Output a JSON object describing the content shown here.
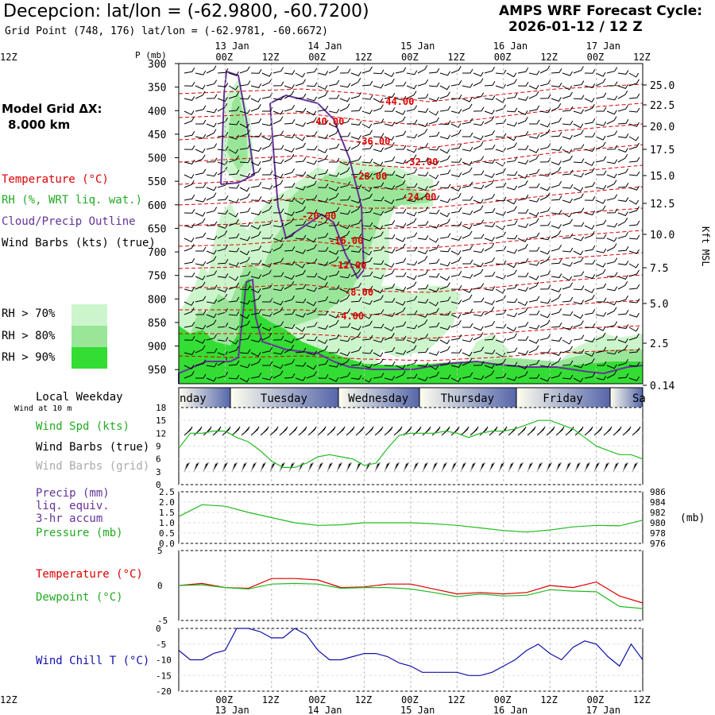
{
  "header": {
    "title": "Decepcion:  lat/lon = (-62.9800, -60.7200)",
    "subtitle": "Grid Point (748, 176) lat/lon = (-62.9781, -60.6672)",
    "forecast_label": "AMPS WRF Forecast Cycle:",
    "forecast_cycle": "2026-01-12 / 12  Z"
  },
  "left_panel": {
    "model_grid_label": "Model Grid ΔX:",
    "model_grid_value": "8.000 km",
    "legend_temperature": "Temperature (°C)",
    "legend_rh": "RH (%, WRT liq. wat.)",
    "legend_cloud": "Cloud/Precip Outline",
    "legend_wind": "Wind Barbs (kts) (true)",
    "rh_levels": [
      {
        "label": "RH > 70%",
        "color": "#ccf5cc"
      },
      {
        "label": "RH > 80%",
        "color": "#99e699"
      },
      {
        "label": "RH > 90%",
        "color": "#33dd33"
      }
    ],
    "weekday_label": "Local Weekday",
    "wind10_label": "Wind at 10 m",
    "wind_spd_label": "Wind Spd (kts)",
    "wind_barbs_true_label": "Wind Barbs (true)",
    "wind_barbs_grid_label": "Wind Barbs (grid)",
    "precip_label": "Precip (mm)",
    "precip_sub1": "liq. equiv.",
    "precip_sub2": "3-hr accum",
    "pressure_label": "Pressure (mb)",
    "temp_label": "Temperature (°C)",
    "dew_label": "Dewpoint (°C)",
    "windchill_label": "Wind Chill T (°C)"
  },
  "time_axis": {
    "top_dates": [
      "13 Jan",
      "14 Jan",
      "15 Jan",
      "16 Jan",
      "17 Jan"
    ],
    "ticks": [
      "00Z",
      "12Z",
      "00Z",
      "12Z",
      "00Z",
      "12Z",
      "00Z",
      "12Z",
      "00Z",
      "12Z"
    ],
    "bottom_dates": [
      "13 Jan",
      "14 Jan",
      "15 Jan",
      "16 Jan",
      "17 Jan"
    ],
    "weekdays": [
      "nday",
      "Tuesday",
      "Wednesday",
      "Thursday",
      "Friday",
      "Sa"
    ]
  },
  "chart_data": [
    {
      "type": "heatmap",
      "name": "Vertical cross-section (time vs pressure)",
      "y_axis_label": "P (mb)",
      "pressure_ticks": [
        "300",
        "350",
        "400",
        "450",
        "500",
        "550",
        "600",
        "650",
        "700",
        "750",
        "800",
        "850",
        "900",
        "950"
      ],
      "right_axis_label": "Kft MSL",
      "kft_ticks": [
        "25.0",
        "22.5",
        "20.0",
        "17.5",
        "15.0",
        "12.5",
        "10.0",
        "7.5",
        "5.0",
        "2.5",
        "0.14"
      ],
      "temperature_contour_labels": [
        "-44.00",
        "-40.00",
        "-36.00",
        "-32.00",
        "-28.00",
        "-24.00",
        "-20.00",
        "-16.00",
        "-12.00",
        "-8.00",
        "-4.00"
      ],
      "colors": {
        "temperature": "#dd0000",
        "cloud": "#663399",
        "rh70": "#ccf5cc",
        "rh80": "#99e699",
        "rh90": "#33dd33"
      }
    },
    {
      "type": "line",
      "name": "Wind speed 10 m",
      "ylim": [
        0,
        18
      ],
      "y_ticks": [
        "18",
        "15",
        "12",
        "9",
        "6",
        "3",
        "0"
      ],
      "color": "#22bb22",
      "x_hours": [
        0,
        6,
        12,
        18,
        24,
        30,
        36,
        42,
        48,
        54,
        60,
        66,
        72,
        78,
        84,
        90,
        96,
        102,
        108,
        114,
        120,
        126,
        132,
        138,
        144,
        150,
        156,
        162,
        168,
        174,
        180,
        186,
        192,
        198,
        204,
        210,
        216,
        222,
        228,
        234,
        240
      ],
      "values": [
        8.5,
        12,
        12,
        12.5,
        12.5,
        11,
        10,
        8,
        5.5,
        4,
        4,
        5,
        6.5,
        7,
        6.5,
        6,
        4.5,
        5,
        8.5,
        11.5,
        12,
        12,
        12,
        12.5,
        12,
        11,
        12,
        12.5,
        12.5,
        13,
        14,
        15,
        15,
        14,
        13,
        11,
        9,
        8,
        7,
        7,
        6
      ]
    },
    {
      "type": "line",
      "name": "Surface pressure",
      "ylim": [
        976,
        986
      ],
      "left_ticks": [
        "2.5",
        "2.0",
        "1.5",
        "1.0",
        "0.5",
        "0.0"
      ],
      "right_ticks": [
        "986",
        "984",
        "982",
        "980",
        "978",
        "976"
      ],
      "right_unit": "(mb)",
      "color": "#22bb22",
      "x_hours": [
        0,
        12,
        24,
        36,
        48,
        60,
        72,
        84,
        96,
        108,
        120,
        132,
        144,
        156,
        168,
        180,
        192,
        204,
        216,
        228,
        240
      ],
      "values": [
        981.2,
        983.5,
        983.2,
        982,
        981,
        980,
        979.5,
        979.6,
        980,
        980,
        980,
        979.8,
        979.5,
        979,
        978.5,
        978.2,
        978.6,
        979.2,
        979.5,
        979.4,
        980.5
      ]
    },
    {
      "type": "line",
      "name": "Temperature and dewpoint",
      "ylim": [
        -5,
        5
      ],
      "y_ticks": [
        "5",
        "0",
        "-5"
      ],
      "series": [
        {
          "name": "Temperature",
          "color": "#dd0000",
          "x_hours": [
            0,
            12,
            24,
            36,
            48,
            60,
            72,
            84,
            96,
            108,
            120,
            132,
            144,
            156,
            168,
            180,
            192,
            204,
            216,
            228,
            240
          ],
          "values": [
            0,
            0.3,
            -0.3,
            -0.4,
            1,
            1,
            0.8,
            -0.3,
            -0.2,
            0.2,
            0.2,
            -0.5,
            -1.2,
            -1,
            -1.2,
            -1,
            0,
            -0.3,
            0.5,
            -1.5,
            -2.5
          ]
        },
        {
          "name": "Dewpoint",
          "color": "#22bb22",
          "x_hours": [
            0,
            12,
            24,
            36,
            48,
            60,
            72,
            84,
            96,
            108,
            120,
            132,
            144,
            156,
            168,
            180,
            192,
            204,
            216,
            228,
            240
          ],
          "values": [
            0,
            0.1,
            -0.3,
            -0.5,
            0.2,
            0.3,
            0.2,
            -0.4,
            -0.3,
            -0.3,
            -0.5,
            -1,
            -1.6,
            -1.2,
            -1.5,
            -1.4,
            -0.6,
            -0.8,
            -0.9,
            -3,
            -3.3
          ]
        }
      ]
    },
    {
      "type": "line",
      "name": "Wind chill",
      "ylim": [
        -20,
        0
      ],
      "y_ticks": [
        "0",
        "-5",
        "-10",
        "-15",
        "-20"
      ],
      "color": "#1111aa",
      "x_hours": [
        0,
        6,
        12,
        18,
        24,
        30,
        36,
        42,
        48,
        54,
        60,
        66,
        72,
        78,
        84,
        90,
        96,
        102,
        108,
        114,
        120,
        126,
        132,
        138,
        144,
        150,
        156,
        162,
        168,
        174,
        180,
        186,
        192,
        198,
        204,
        210,
        216,
        222,
        228,
        234,
        240
      ],
      "values": [
        -7,
        -10,
        -10,
        -8,
        -7,
        0,
        0,
        -1,
        -3,
        -3,
        0,
        -2,
        -7,
        -10,
        -10,
        -9,
        -8,
        -8,
        -9,
        -11,
        -12,
        -14,
        -14,
        -14,
        -14,
        -15,
        -15,
        -14,
        -12,
        -10,
        -7,
        -5,
        -8,
        -10,
        -6,
        -4,
        -5,
        -9,
        -12,
        -5,
        -10
      ]
    }
  ]
}
